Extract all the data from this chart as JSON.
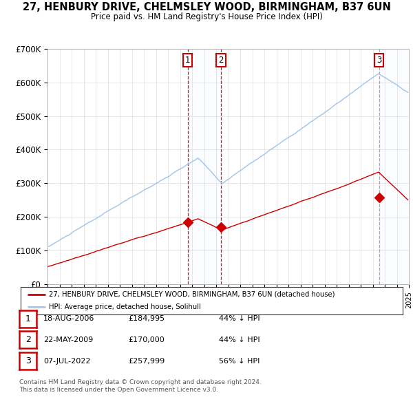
{
  "title": "27, HENBURY DRIVE, CHELMSLEY WOOD, BIRMINGHAM, B37 6UN",
  "subtitle": "Price paid vs. HM Land Registry's House Price Index (HPI)",
  "ylim": [
    0,
    700000
  ],
  "yticks": [
    0,
    100000,
    200000,
    300000,
    400000,
    500000,
    600000,
    700000
  ],
  "ytick_labels": [
    "£0",
    "£100K",
    "£200K",
    "£300K",
    "£400K",
    "£500K",
    "£600K",
    "£700K"
  ],
  "hpi_color": "#a8c8e8",
  "price_color": "#cc0000",
  "sale1": {
    "date_num": 2006.63,
    "price": 184995,
    "label": "1"
  },
  "sale2": {
    "date_num": 2009.39,
    "price": 170000,
    "label": "2"
  },
  "sale3": {
    "date_num": 2022.52,
    "price": 257999,
    "label": "3"
  },
  "legend_house_label": "27, HENBURY DRIVE, CHELMSLEY WOOD, BIRMINGHAM, B37 6UN (detached house)",
  "legend_hpi_label": "HPI: Average price, detached house, Solihull",
  "table_rows": [
    {
      "num": "1",
      "date": "18-AUG-2006",
      "price": "£184,995",
      "hpi": "44% ↓ HPI"
    },
    {
      "num": "2",
      "date": "22-MAY-2009",
      "price": "£170,000",
      "hpi": "44% ↓ HPI"
    },
    {
      "num": "3",
      "date": "07-JUL-2022",
      "price": "£257,999",
      "hpi": "56% ↓ HPI"
    }
  ],
  "footnote1": "Contains HM Land Registry data © Crown copyright and database right 2024.",
  "footnote2": "This data is licensed under the Open Government Licence v3.0.",
  "bg_color": "#ffffff",
  "grid_color": "#dddddd",
  "shade_color": "#ddeeff",
  "xlim_start": 1995,
  "xlim_end": 2025
}
